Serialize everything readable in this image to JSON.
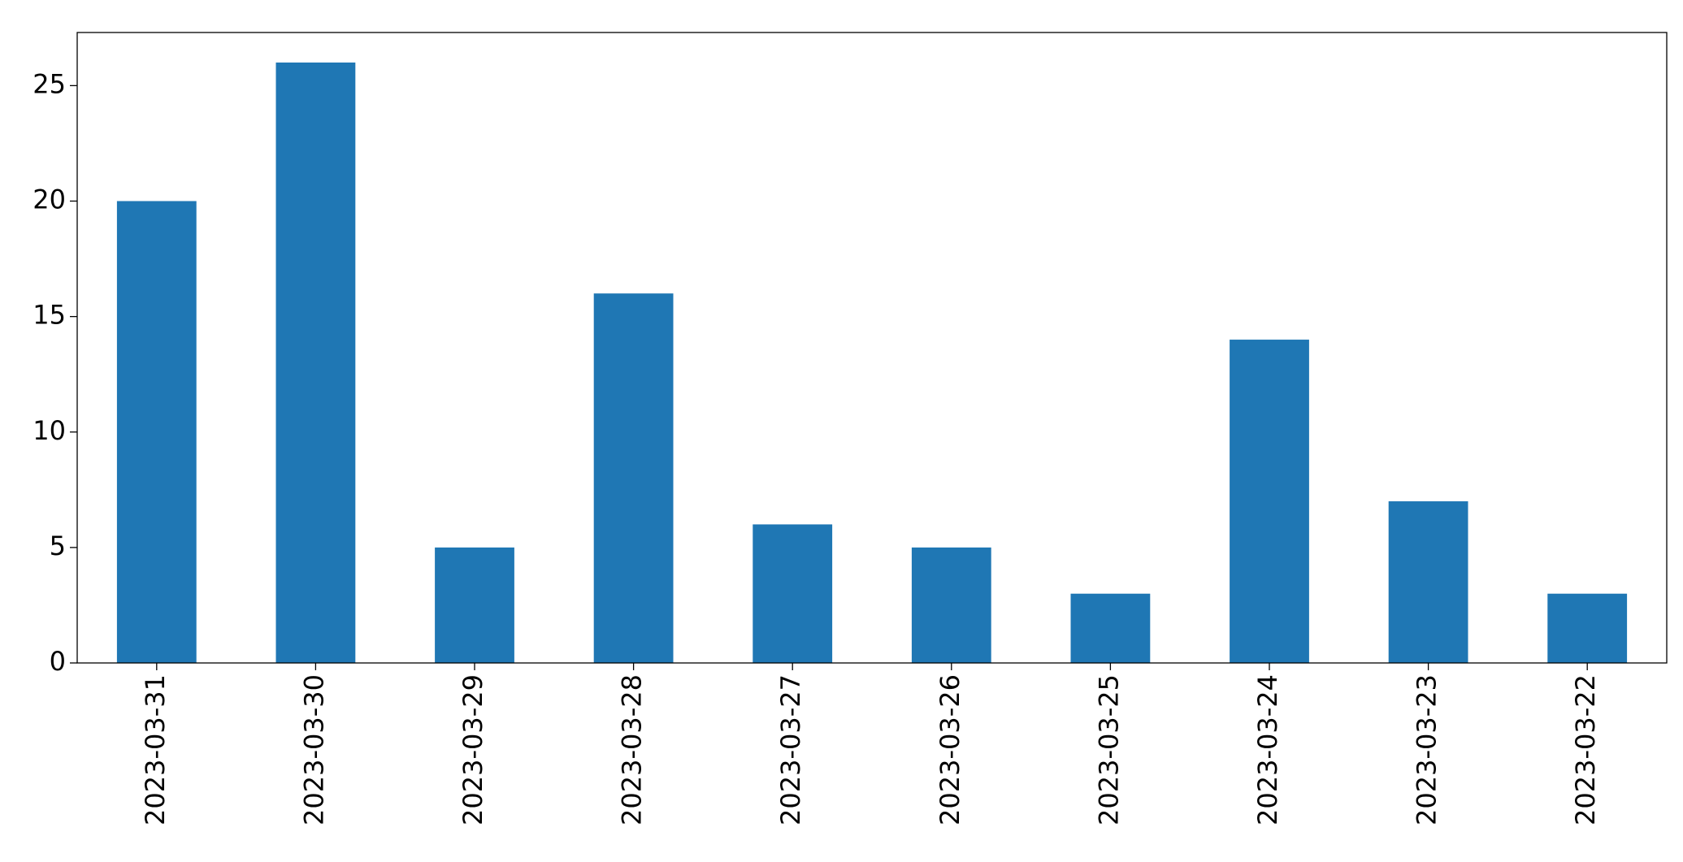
{
  "chart_data": {
    "type": "bar",
    "categories": [
      "2023-03-31",
      "2023-03-30",
      "2023-03-29",
      "2023-03-28",
      "2023-03-27",
      "2023-03-26",
      "2023-03-25",
      "2023-03-24",
      "2023-03-23",
      "2023-03-22"
    ],
    "values": [
      20,
      26,
      5,
      16,
      6,
      5,
      3,
      14,
      7,
      3
    ],
    "color": "#1f77b4",
    "ylim": [
      0,
      27.3
    ],
    "yticks": [
      0,
      5,
      10,
      15,
      20,
      25
    ],
    "grid": false
  }
}
